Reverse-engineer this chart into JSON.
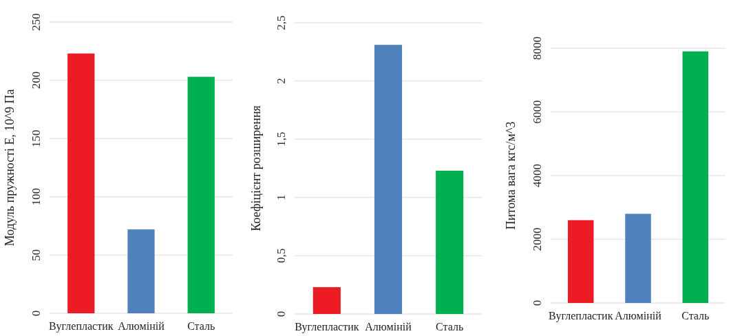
{
  "chart_data": [
    {
      "type": "bar",
      "ylabel": "Модуль пружності Е, 10^9 Па",
      "categories": [
        "Вуглепластик",
        "Алюміній",
        "Сталь"
      ],
      "values": [
        223,
        72,
        203
      ],
      "colors": [
        "#ed1c24",
        "#4f81bd",
        "#00b050"
      ],
      "ylim": [
        0,
        250
      ],
      "yticks": [
        0,
        50,
        100,
        150,
        200,
        250
      ],
      "grid": "y"
    },
    {
      "type": "bar",
      "ylabel": "Коефіцієнт розширення",
      "categories": [
        "Вуглепластик",
        "Алюміній",
        "Сталь"
      ],
      "values": [
        0.23,
        2.31,
        1.23
      ],
      "colors": [
        "#ed1c24",
        "#4f81bd",
        "#00b050"
      ],
      "ylim": [
        0,
        2.5
      ],
      "yticks": [
        0,
        {
          "value": 0.5,
          "label": "0,5"
        },
        1,
        {
          "value": 1.5,
          "label": "1,5"
        },
        2,
        {
          "value": 2.5,
          "label": "2,5"
        }
      ],
      "grid": "y"
    },
    {
      "type": "bar",
      "ylabel": "Питома вага кгс/м^3",
      "categories": [
        "Вуглепластик",
        "Алюміній",
        "Сталь"
      ],
      "values": [
        2600,
        2800,
        7900
      ],
      "colors": [
        "#ed1c24",
        "#4f81bd",
        "#00b050"
      ],
      "ylim": [
        0,
        8000
      ],
      "yticks": [
        0,
        2000,
        4000,
        6000,
        8000
      ],
      "grid": "y"
    }
  ]
}
